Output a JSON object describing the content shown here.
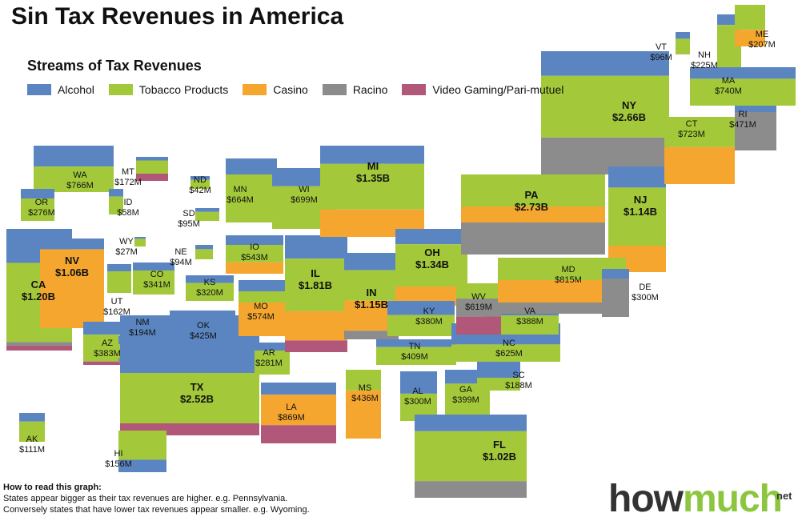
{
  "title": "Sin Tax Revenues in America",
  "subtitle": "Streams of Tax Revenues",
  "legend": [
    {
      "label": "Alcohol",
      "color": "#5b85c1"
    },
    {
      "label": "Tobacco Products",
      "color": "#a3c93a"
    },
    {
      "label": "Casino",
      "color": "#f5a62e"
    },
    {
      "label": "Racino",
      "color": "#8c8c8c"
    },
    {
      "label": "Video Gaming/Pari-mutuel",
      "color": "#b15779"
    }
  ],
  "howto": {
    "title": "How to read this graph:",
    "line1": "States appear bigger as their tax revenues are higher. e.g. Pennsylvania.",
    "line2": "Conversely states that have lower tax revenues appear smaller. e.g. Wyoming."
  },
  "brand": {
    "how": "how",
    "much": "much",
    "tld": "net"
  },
  "chart_data": {
    "type": "cartogram",
    "categories": [
      "Alcohol",
      "Tobacco Products",
      "Casino",
      "Racino",
      "Video Gaming/Pari-mutuel"
    ],
    "states": [
      {
        "code": "WA",
        "value": "$766M"
      },
      {
        "code": "OR",
        "value": "$276M"
      },
      {
        "code": "CA",
        "value": "$1.20B"
      },
      {
        "code": "NV",
        "value": "$1.06B"
      },
      {
        "code": "ID",
        "value": "$58M"
      },
      {
        "code": "MT",
        "value": "$172M"
      },
      {
        "code": "WY",
        "value": "$27M"
      },
      {
        "code": "UT",
        "value": "$162M"
      },
      {
        "code": "AZ",
        "value": "$383M"
      },
      {
        "code": "NM",
        "value": "$194M"
      },
      {
        "code": "CO",
        "value": "$341M"
      },
      {
        "code": "ND",
        "value": "$42M"
      },
      {
        "code": "SD",
        "value": "$95M"
      },
      {
        "code": "NE",
        "value": "$94M"
      },
      {
        "code": "KS",
        "value": "$320M"
      },
      {
        "code": "OK",
        "value": "$425M"
      },
      {
        "code": "TX",
        "value": "$2.52B"
      },
      {
        "code": "MN",
        "value": "$664M"
      },
      {
        "code": "IO",
        "value": "$543M"
      },
      {
        "code": "MO",
        "value": "$574M"
      },
      {
        "code": "AR",
        "value": "$281M"
      },
      {
        "code": "LA",
        "value": "$869M"
      },
      {
        "code": "WI",
        "value": "$699M"
      },
      {
        "code": "IL",
        "value": "$1.81B"
      },
      {
        "code": "MI",
        "value": "$1.35B"
      },
      {
        "code": "IN",
        "value": "$1.15B"
      },
      {
        "code": "OH",
        "value": "$1.34B"
      },
      {
        "code": "KY",
        "value": "$380M"
      },
      {
        "code": "TN",
        "value": "$409M"
      },
      {
        "code": "MS",
        "value": "$436M"
      },
      {
        "code": "AL",
        "value": "$300M"
      },
      {
        "code": "GA",
        "value": "$399M"
      },
      {
        "code": "FL",
        "value": "$1.02B"
      },
      {
        "code": "SC",
        "value": "$188M"
      },
      {
        "code": "NC",
        "value": "$625M"
      },
      {
        "code": "VA",
        "value": "$388M"
      },
      {
        "code": "WV",
        "value": "$619M"
      },
      {
        "code": "PA",
        "value": "$2.73B"
      },
      {
        "code": "NY",
        "value": "$2.66B"
      },
      {
        "code": "NJ",
        "value": "$1.14B"
      },
      {
        "code": "MD",
        "value": "$815M"
      },
      {
        "code": "DE",
        "value": "$300M"
      },
      {
        "code": "CT",
        "value": "$723M"
      },
      {
        "code": "RI",
        "value": "$471M"
      },
      {
        "code": "MA",
        "value": "$740M"
      },
      {
        "code": "VT",
        "value": "$96M"
      },
      {
        "code": "NH",
        "value": "$225M"
      },
      {
        "code": "ME",
        "value": "$207M"
      },
      {
        "code": "AK",
        "value": "$111M"
      },
      {
        "code": "HI",
        "value": "$156M"
      }
    ]
  }
}
